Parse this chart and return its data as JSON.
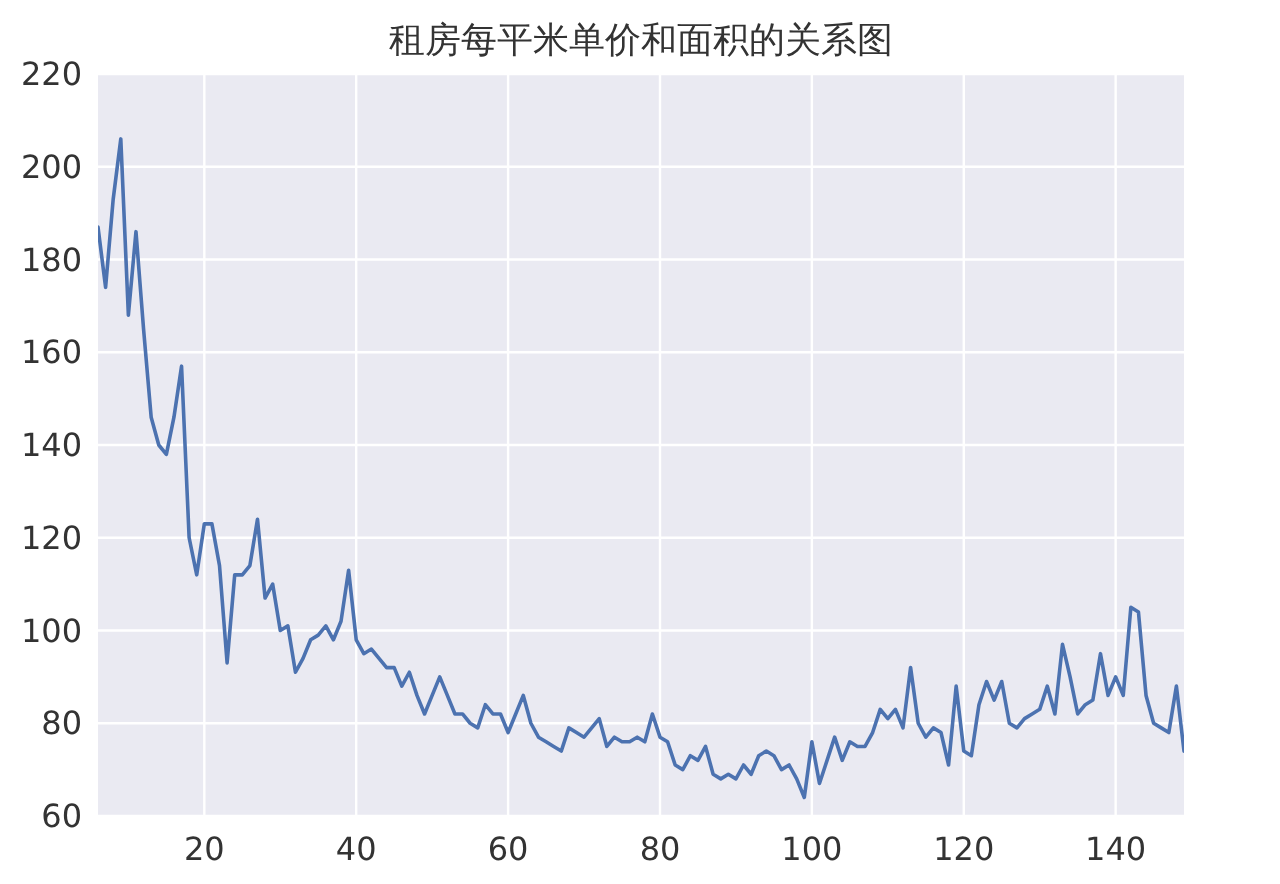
{
  "chart_data": {
    "type": "line",
    "title": "租房每平米单价和面积的关系图",
    "x": [
      6,
      7,
      8,
      9,
      10,
      11,
      12,
      13,
      14,
      15,
      16,
      17,
      18,
      19,
      20,
      21,
      22,
      23,
      24,
      25,
      26,
      27,
      28,
      29,
      30,
      31,
      32,
      33,
      34,
      35,
      36,
      37,
      38,
      39,
      40,
      41,
      42,
      43,
      44,
      45,
      46,
      47,
      48,
      49,
      50,
      51,
      52,
      53,
      54,
      55,
      56,
      57,
      58,
      59,
      60,
      61,
      62,
      63,
      64,
      65,
      66,
      67,
      68,
      69,
      70,
      71,
      72,
      73,
      74,
      75,
      76,
      77,
      78,
      79,
      80,
      81,
      82,
      83,
      84,
      85,
      86,
      87,
      88,
      89,
      90,
      91,
      92,
      93,
      94,
      95,
      96,
      97,
      98,
      99,
      100,
      101,
      102,
      103,
      104,
      105,
      106,
      107,
      108,
      109,
      110,
      111,
      112,
      113,
      114,
      115,
      116,
      117,
      118,
      119,
      120,
      121,
      122,
      123,
      124,
      125,
      126,
      127,
      128,
      129,
      130,
      131,
      132,
      133,
      134,
      135,
      136,
      137,
      138,
      139,
      140,
      141,
      142,
      143,
      144,
      145,
      146,
      147,
      148,
      149
    ],
    "series": [
      {
        "color": "#4c72b0",
        "values": [
          187,
          174,
          193,
          206,
          168,
          186,
          165,
          146,
          140,
          138,
          146,
          157,
          120,
          112,
          123,
          123,
          114,
          93,
          112,
          112,
          114,
          124,
          107,
          110,
          100,
          101,
          91,
          94,
          98,
          99,
          101,
          98,
          102,
          113,
          98,
          95,
          96,
          94,
          92,
          92,
          88,
          91,
          86,
          82,
          86,
          90,
          86,
          82,
          82,
          80,
          79,
          84,
          82,
          82,
          78,
          82,
          86,
          80,
          77,
          76,
          75,
          74,
          79,
          78,
          77,
          79,
          81,
          75,
          77,
          76,
          76,
          77,
          76,
          82,
          77,
          76,
          71,
          70,
          73,
          72,
          75,
          69,
          68,
          69,
          68,
          71,
          69,
          73,
          74,
          73,
          70,
          71,
          68,
          64,
          76,
          67,
          72,
          77,
          72,
          76,
          75,
          75,
          78,
          83,
          81,
          83,
          79,
          92,
          80,
          77,
          79,
          78,
          71,
          88,
          74,
          73,
          84,
          89,
          85,
          89,
          80,
          79,
          81,
          82,
          83,
          88,
          82,
          97,
          90,
          82,
          84,
          85,
          95,
          86,
          90,
          86,
          105,
          104,
          86,
          80,
          79,
          78,
          88,
          74
        ]
      }
    ],
    "xlim": [
      6,
      149
    ],
    "xticks": [
      20,
      40,
      60,
      80,
      100,
      120,
      140
    ],
    "ylim": [
      60,
      220
    ],
    "yticks": [
      60,
      80,
      100,
      120,
      140,
      160,
      180,
      200,
      220
    ],
    "grid": true
  }
}
